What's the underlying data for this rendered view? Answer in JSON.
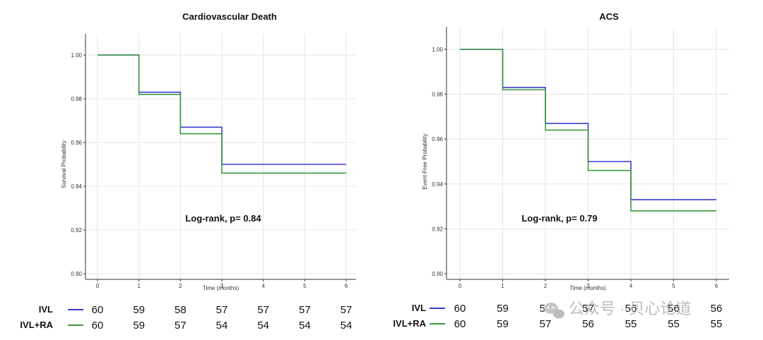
{
  "chart_data": [
    {
      "type": "line",
      "title": "Cardiovascular Death",
      "xlabel": "Time (months)",
      "ylabel": "Survival Probability",
      "xlim": [
        0,
        6
      ],
      "ylim": [
        0.9,
        1.0
      ],
      "x_ticks": [
        0,
        1,
        2,
        3,
        4,
        5,
        6
      ],
      "y_ticks": [
        0.9,
        0.92,
        0.94,
        0.96,
        0.98,
        1.0
      ],
      "y_tick_labels": [
        "0.90",
        "0.92",
        "0.94",
        "0.96",
        "0.98",
        "1.00"
      ],
      "grid": true,
      "step": true,
      "series": [
        {
          "name": "IVL",
          "color": "#3b3bd6",
          "x": [
            0,
            1,
            2,
            3,
            6
          ],
          "y": [
            1.0,
            0.983,
            0.967,
            0.95,
            0.95
          ]
        },
        {
          "name": "IVL+RA",
          "color": "#3a9a3a",
          "x": [
            0,
            1,
            2,
            3,
            6
          ],
          "y": [
            1.0,
            0.982,
            0.964,
            0.946,
            0.946
          ]
        }
      ],
      "annotation": "Log-rank, p= 0.84",
      "risk_table": {
        "rows": [
          {
            "label": "IVL",
            "values": [
              "60",
              "59",
              "58",
              "57",
              "57",
              "57",
              "57"
            ]
          },
          {
            "label": "IVL+RA",
            "values": [
              "60",
              "59",
              "57",
              "54",
              "54",
              "54",
              "54"
            ]
          }
        ]
      }
    },
    {
      "type": "line",
      "title": "ACS",
      "xlabel": "Time (months)",
      "ylabel": "Event-Free Probability",
      "xlim": [
        0,
        6
      ],
      "ylim": [
        0.9,
        1.0
      ],
      "x_ticks": [
        0,
        1,
        2,
        3,
        4,
        5,
        6
      ],
      "y_ticks": [
        0.9,
        0.92,
        0.94,
        0.96,
        0.98,
        1.0
      ],
      "y_tick_labels": [
        "0.90",
        "0.92",
        "0.94",
        "0.96",
        "0.98",
        "1.00"
      ],
      "grid": true,
      "step": true,
      "series": [
        {
          "name": "IVL",
          "color": "#3b3bd6",
          "x": [
            0,
            1,
            2,
            3,
            4,
            6
          ],
          "y": [
            1.0,
            0.983,
            0.967,
            0.95,
            0.933,
            0.933
          ]
        },
        {
          "name": "IVL+RA",
          "color": "#3a9a3a",
          "x": [
            0,
            1,
            2,
            3,
            4,
            6
          ],
          "y": [
            1.0,
            0.982,
            0.964,
            0.946,
            0.928,
            0.928
          ]
        }
      ],
      "annotation": "Log-rank, p= 0.79",
      "risk_table": {
        "rows": [
          {
            "label": "IVL",
            "values": [
              "60",
              "59",
              "58",
              "57",
              "56",
              "56",
              "56"
            ]
          },
          {
            "label": "IVL+RA",
            "values": [
              "60",
              "59",
              "57",
              "56",
              "55",
              "55",
              "55"
            ]
          }
        ]
      }
    }
  ],
  "watermark": "公众号 · 贝心论道"
}
